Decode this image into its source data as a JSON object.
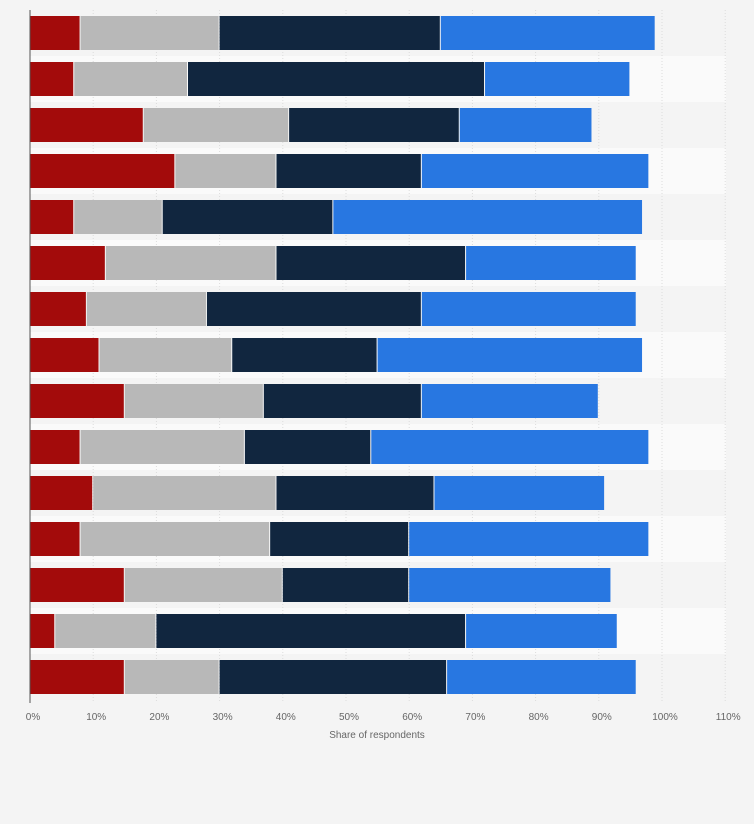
{
  "chart_data": {
    "type": "bar",
    "orientation": "horizontal",
    "stacked": true,
    "xlabel": "Share of respondents",
    "xlim": [
      0,
      110
    ],
    "x_ticks": [
      0,
      10,
      20,
      30,
      40,
      50,
      60,
      70,
      80,
      90,
      100,
      110
    ],
    "x_tick_labels": [
      "0%",
      "10%",
      "20%",
      "30%",
      "40%",
      "50%",
      "60%",
      "70%",
      "80%",
      "90%",
      "100%",
      "110%"
    ],
    "grid": true,
    "legend": "none",
    "series": [
      {
        "color": "#a30b0b",
        "values": [
          8,
          7,
          18,
          23,
          7,
          12,
          9,
          11,
          15,
          8,
          10,
          8,
          15,
          4,
          15
        ]
      },
      {
        "color": "#b8b8b8",
        "values": [
          22,
          18,
          23,
          16,
          14,
          27,
          19,
          21,
          22,
          26,
          29,
          30,
          25,
          16,
          15
        ]
      },
      {
        "color": "#11263f",
        "values": [
          35,
          47,
          27,
          23,
          27,
          30,
          34,
          23,
          25,
          20,
          25,
          22,
          20,
          49,
          36
        ]
      },
      {
        "color": "#2877e1",
        "values": [
          34,
          23,
          21,
          36,
          49,
          27,
          34,
          42,
          28,
          44,
          27,
          38,
          32,
          24,
          30
        ]
      }
    ]
  }
}
